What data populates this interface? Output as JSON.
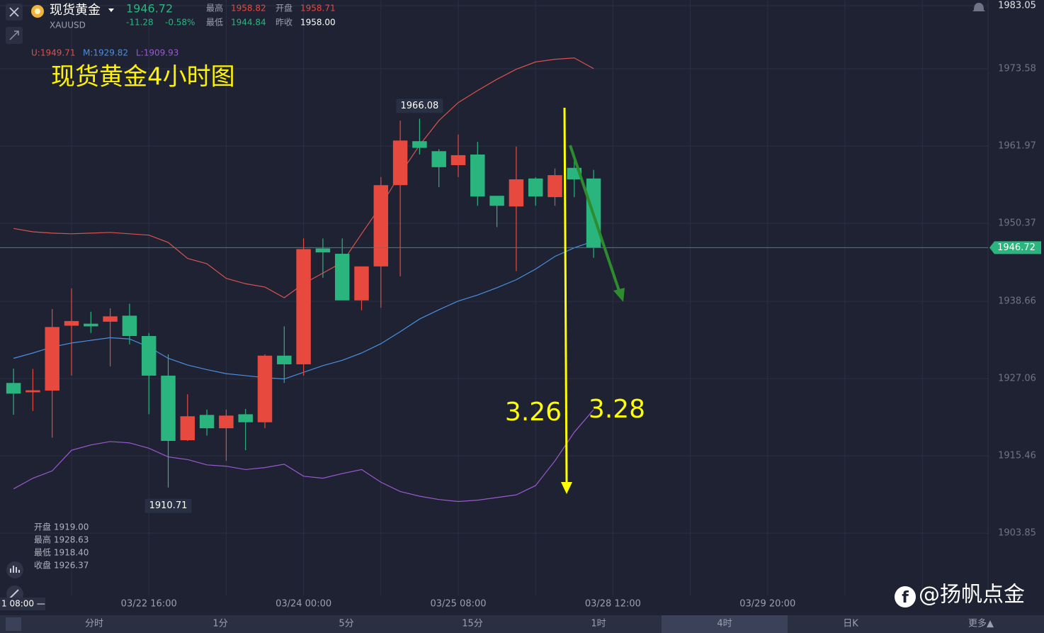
{
  "quote": {
    "name": "现货黄金",
    "symbol": "XAUUSD",
    "price": "1946.72",
    "change": "-11.28",
    "change_pct": "-0.58%",
    "high_label": "最高",
    "high": "1958.82",
    "open_label": "开盘",
    "open": "1958.71",
    "low_label": "最低",
    "low": "1944.84",
    "prev_close_label": "昨收",
    "prev_close": "1958.00"
  },
  "ohlc_panel": [
    "开盘 1919.00",
    "最高 1928.63",
    "最低 1918.40",
    "收盘 1926.37"
  ],
  "tabs": [
    "分时",
    "1分",
    "5分",
    "15分",
    "1时",
    "4时",
    "日K",
    "更多▲"
  ],
  "watermark": "@扬帆点金",
  "chart_data": {
    "type": "candlestick",
    "title": "现货黄金4小时图",
    "x": [
      0,
      1,
      2,
      3,
      4,
      5,
      6,
      7,
      8,
      9,
      10,
      11,
      12,
      13,
      14,
      15,
      16,
      17,
      18,
      19,
      20,
      21,
      22,
      23,
      24,
      25,
      26,
      27,
      28,
      29,
      30
    ],
    "open": [
      1926.4,
      1925.0,
      1925.25,
      1935.0,
      1935.3,
      1935.6,
      1936.5,
      1933.45,
      1927.5,
      1917.8,
      1921.6,
      1919.6,
      1921.7,
      1920.5,
      1930.5,
      1929.2,
      1946.6,
      1945.8,
      1938.8,
      1943.9,
      1956.1,
      1962.7,
      1961.2,
      1959.1,
      1960.7,
      1954.5,
      1952.9,
      1957.1,
      1954.3,
      1958.7,
      1957.1
    ],
    "high": [
      1928.55,
      1928.5,
      1937.5,
      1940.6,
      1937.1,
      1937.6,
      1938.3,
      1933.9,
      1930.7,
      1924.7,
      1922.4,
      1922.4,
      1922.5,
      1930.7,
      1934.9,
      1948.1,
      1948.1,
      1948.1,
      1943.9,
      1957.3,
      1965.8,
      1966.08,
      1961.5,
      1963.7,
      1962.6,
      1954.5,
      1961.9,
      1957.3,
      1958.6,
      1960.3,
      1958.4
    ],
    "low": [
      1921.63,
      1922.2,
      1918.2,
      1927.5,
      1933.9,
      1928.9,
      1932.2,
      1921.7,
      1910.71,
      1917.7,
      1918.5,
      1914.7,
      1916.3,
      1919.6,
      1926.4,
      1927.5,
      1942.2,
      1938.8,
      1937.3,
      1937.7,
      1942.4,
      1960.7,
      1955.8,
      1957.3,
      1953.0,
      1949.8,
      1943.2,
      1953.0,
      1953.0,
      1954.3,
      1945.2
    ],
    "close": [
      1924.8,
      1925.3,
      1934.8,
      1935.7,
      1934.9,
      1936.4,
      1933.45,
      1927.5,
      1917.7,
      1921.4,
      1919.6,
      1921.5,
      1920.5,
      1930.5,
      1929.2,
      1946.5,
      1946.0,
      1938.8,
      1943.9,
      1956.1,
      1962.8,
      1961.7,
      1958.8,
      1960.6,
      1954.4,
      1953.0,
      1956.97,
      1954.4,
      1957.6,
      1956.97,
      1946.72
    ],
    "up_color": "#e8493f",
    "down_color": "#2bb57e",
    "bands": [
      {
        "name": "U:1949.71",
        "color": "#d9534f",
        "values": [
          1949.6,
          1949.1,
          1948.9,
          1948.8,
          1948.9,
          1949.0,
          1948.8,
          1948.6,
          1947.5,
          1945.1,
          1944.3,
          1942.1,
          1941.3,
          1940.8,
          1939.2,
          1941.3,
          1942.9,
          1944.5,
          1948.8,
          1953.0,
          1957.8,
          1962.1,
          1965.8,
          1968.5,
          1970.3,
          1972.0,
          1973.5,
          1974.6,
          1975.0,
          1975.2,
          1973.6
        ]
      },
      {
        "name": "M:1929.82",
        "color": "#4a8fe0",
        "values": [
          1930.1,
          1930.9,
          1931.8,
          1932.4,
          1932.8,
          1933.2,
          1933.0,
          1931.8,
          1930.1,
          1929.1,
          1928.4,
          1927.8,
          1927.5,
          1927.2,
          1927.0,
          1928.0,
          1929.0,
          1929.8,
          1930.9,
          1932.3,
          1934.1,
          1936.0,
          1937.4,
          1938.7,
          1939.6,
          1940.7,
          1941.9,
          1943.5,
          1945.4,
          1946.7,
          1947.7
        ]
      },
      {
        "name": "L:1909.93",
        "color": "#9b59d0",
        "values": [
          1910.5,
          1912.1,
          1913.2,
          1916.3,
          1917.1,
          1917.6,
          1917.4,
          1916.6,
          1915.3,
          1914.9,
          1914.1,
          1913.9,
          1913.4,
          1913.7,
          1914.2,
          1912.4,
          1912.1,
          1912.8,
          1913.4,
          1911.5,
          1910.1,
          1909.4,
          1908.9,
          1908.6,
          1908.8,
          1909.2,
          1909.6,
          1911.0,
          1914.7,
          1919.0,
          1922.4
        ]
      }
    ],
    "xlim": [
      -0.7,
      50.4
    ],
    "xticks": [
      {
        "value": 7,
        "label": "03/22 16:00"
      },
      {
        "value": 15,
        "label": "03/24 00:00"
      },
      {
        "value": 23,
        "label": "03/25 08:00"
      },
      {
        "value": 31,
        "label": "03/28 12:00"
      },
      {
        "value": 39,
        "label": "03/29 20:00"
      }
    ],
    "ylim": [
      1894.5,
      1983.9
    ],
    "yticks": [
      1983.05,
      1973.58,
      1961.97,
      1950.37,
      1938.66,
      1927.06,
      1915.46,
      1903.85
    ],
    "grid": true,
    "current_price": 1946.72,
    "crosshair_time": "1 08:00 —",
    "annotations": [
      "3.26",
      "3.28"
    ]
  }
}
